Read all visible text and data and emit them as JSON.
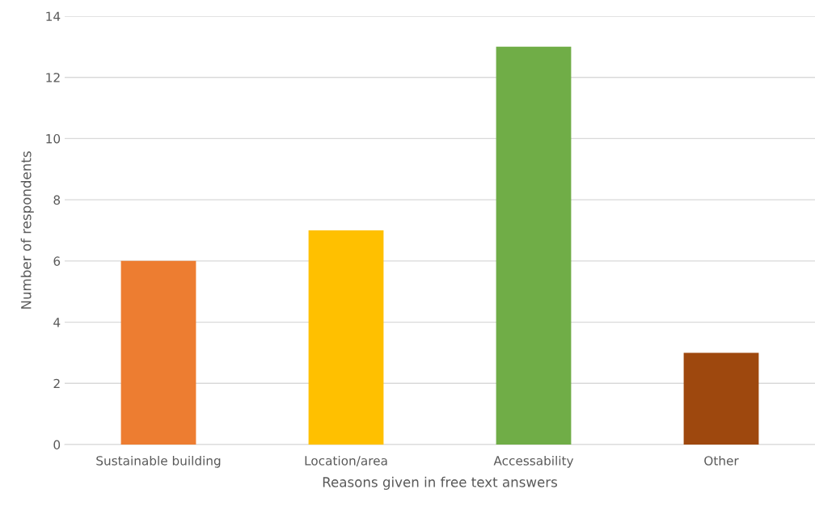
{
  "chart_data": {
    "type": "bar",
    "xlabel": "Reasons given in free text answers",
    "ylabel": "Number of respondents",
    "categories": [
      "Sustainable building",
      "Location/area",
      "Accessability",
      "Other"
    ],
    "values": [
      6,
      7,
      13,
      3
    ],
    "colors": [
      "#ed7d31",
      "#ffc000",
      "#70ad47",
      "#9e480e"
    ],
    "ylim": [
      0,
      14
    ],
    "yticks": [
      0,
      2,
      4,
      6,
      8,
      10,
      12,
      14
    ],
    "grid": "y"
  }
}
